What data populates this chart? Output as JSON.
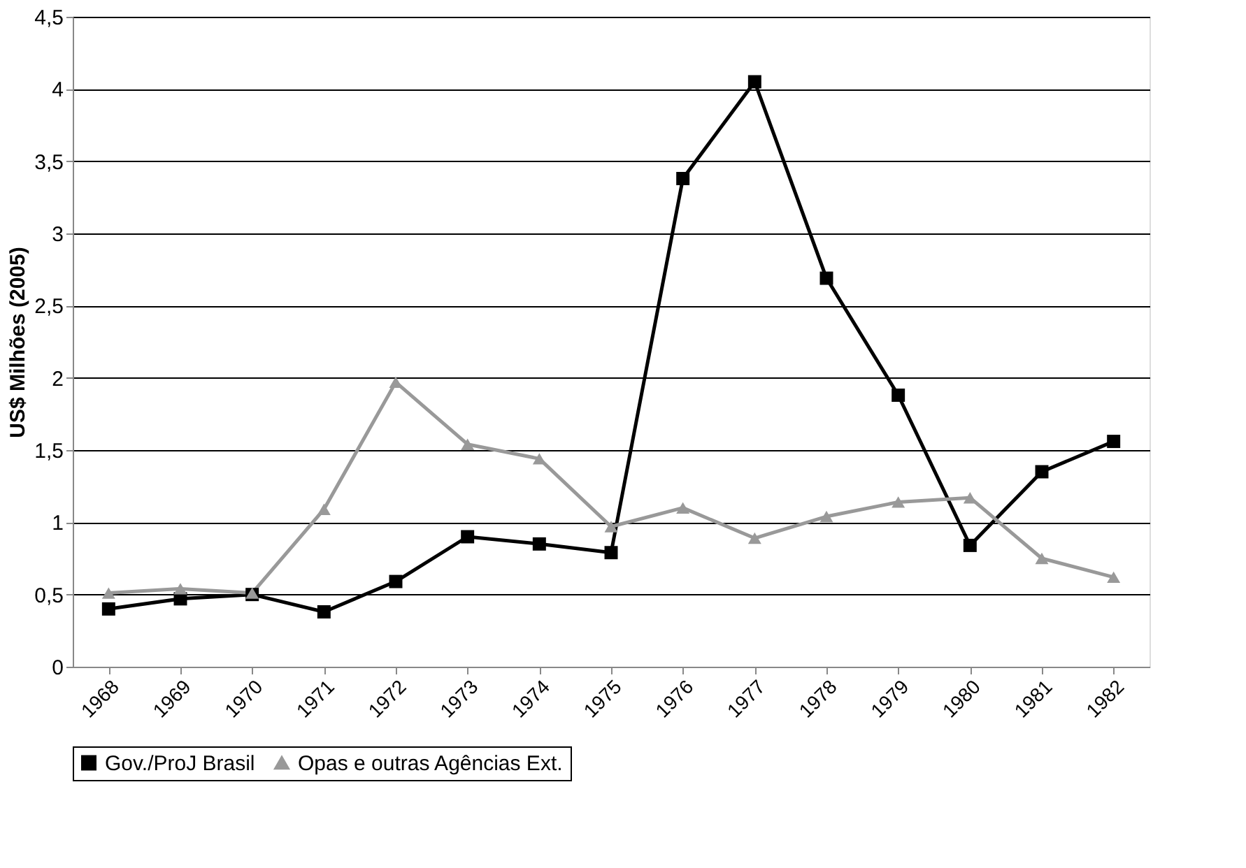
{
  "chart_data": {
    "type": "line",
    "ylabel": "US$ Milhões (2005)",
    "categories": [
      "1968",
      "1969",
      "1970",
      "1971",
      "1972",
      "1973",
      "1974",
      "1975",
      "1976",
      "1977",
      "1978",
      "1979",
      "1980",
      "1981",
      "1982"
    ],
    "series": [
      {
        "name": "Gov./ProJ Brasil",
        "color": "#000000",
        "marker": "square",
        "values": [
          0.4,
          0.47,
          0.5,
          0.38,
          0.59,
          0.9,
          0.85,
          0.79,
          3.38,
          4.05,
          2.69,
          1.88,
          0.84,
          1.35,
          1.56
        ]
      },
      {
        "name": "Opas e outras Agências Ext.",
        "color": "#999999",
        "marker": "triangle",
        "values": [
          0.51,
          0.54,
          0.51,
          1.09,
          1.97,
          1.54,
          1.44,
          0.97,
          1.1,
          0.89,
          1.04,
          1.14,
          1.17,
          0.75,
          0.62
        ]
      }
    ],
    "ylim": [
      0,
      4.5
    ],
    "yticks": [
      0,
      {
        "value": 0.5,
        "label": "0,5"
      },
      1,
      {
        "value": 1.5,
        "label": "1,5"
      },
      2,
      {
        "value": 2.5,
        "label": "2,5"
      },
      3,
      {
        "value": 3.5,
        "label": "3,5"
      },
      4,
      {
        "value": 4.5,
        "label": "4,5"
      }
    ],
    "grid": "y",
    "legend": "bottom",
    "line_style": "solid"
  }
}
